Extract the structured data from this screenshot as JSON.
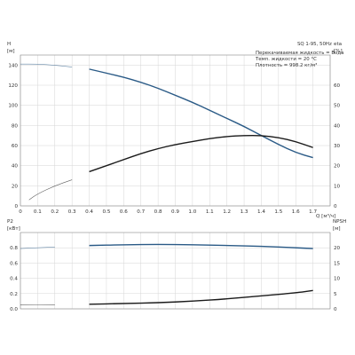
{
  "chart_data": [
    {
      "type": "line",
      "title": "SQ 1-95, 50Hz",
      "annotations": [
        "Перекачиваемая жидкость = Вода",
        "Темп. жидкости = 20 °C",
        "Плотность = 998.2 кг/м³"
      ],
      "xlabel": "Q [м³/ч]",
      "x_ticks": [
        "0",
        "0.1",
        "0.2",
        "0.3",
        "0.4",
        "0.5",
        "0.6",
        "0.7",
        "0.8",
        "0.9",
        "1.0",
        "1.1",
        "1.2",
        "1.3",
        "1.4",
        "1.5",
        "1.6",
        "1.7"
      ],
      "xlim": [
        0,
        1.8
      ],
      "ylabel_left": [
        "H",
        "[м]"
      ],
      "ylim_left": [
        0,
        150
      ],
      "y_ticks_left": [
        "0",
        "20",
        "40",
        "60",
        "80",
        "100",
        "120",
        "140"
      ],
      "ylabel_right": [
        "eta",
        "[%]"
      ],
      "ylim_right": [
        0,
        75
      ],
      "y_ticks_right": [
        "0",
        "10",
        "20",
        "30",
        "40",
        "50",
        "60"
      ],
      "grid": true,
      "series": [
        {
          "axis": "left",
          "color": "#2a5a86",
          "thin_end_x": 0.35,
          "x": [
            0,
            0.1,
            0.2,
            0.3,
            0.4,
            0.5,
            0.6,
            0.7,
            0.8,
            0.9,
            1.0,
            1.1,
            1.2,
            1.3,
            1.4,
            1.5,
            1.6,
            1.7
          ],
          "y": [
            141,
            141,
            140,
            138,
            136,
            132,
            128,
            123,
            117,
            110,
            103,
            95,
            87,
            79,
            70,
            61,
            53,
            48
          ]
        },
        {
          "axis": "right",
          "color": "#1a1a1a",
          "thin_end_x": 0.35,
          "x": [
            0.05,
            0.1,
            0.2,
            0.3,
            0.4,
            0.5,
            0.6,
            0.7,
            0.8,
            0.9,
            1.0,
            1.1,
            1.2,
            1.3,
            1.4,
            1.5,
            1.6,
            1.7
          ],
          "y": [
            3,
            6,
            10,
            13,
            17,
            20,
            23,
            26,
            28.5,
            30.5,
            32,
            33.5,
            34.5,
            35,
            35,
            34,
            32,
            29
          ]
        }
      ]
    },
    {
      "type": "line",
      "xlim": [
        0,
        1.8
      ],
      "ylabel_left": [
        "P2",
        "[кВт]"
      ],
      "ylim_left": [
        0,
        1.0
      ],
      "y_ticks_left": [
        "0.0",
        "0.2",
        "0.4",
        "0.6",
        "0.8"
      ],
      "ylabel_right": [
        "NPSH",
        "[м]"
      ],
      "ylim_right": [
        0,
        25
      ],
      "y_ticks_right": [
        "0",
        "5",
        "10",
        "15",
        "20"
      ],
      "grid": true,
      "series": [
        {
          "axis": "left",
          "color": "#2a5a86",
          "thin_end_x": 0.35,
          "x": [
            0,
            0.2,
            0.4,
            0.6,
            0.8,
            1.0,
            1.2,
            1.4,
            1.6,
            1.7
          ],
          "y": [
            0.79,
            0.81,
            0.83,
            0.84,
            0.845,
            0.84,
            0.83,
            0.82,
            0.8,
            0.79
          ]
        },
        {
          "axis": "left",
          "color": "#1a1a1a",
          "thin_end_x": 0.35,
          "x": [
            0,
            0.2,
            0.4,
            0.6,
            0.8,
            1.0,
            1.2,
            1.4,
            1.6,
            1.7
          ],
          "y": [
            0.05,
            0.055,
            0.06,
            0.07,
            0.08,
            0.1,
            0.13,
            0.17,
            0.21,
            0.24
          ]
        }
      ]
    }
  ]
}
